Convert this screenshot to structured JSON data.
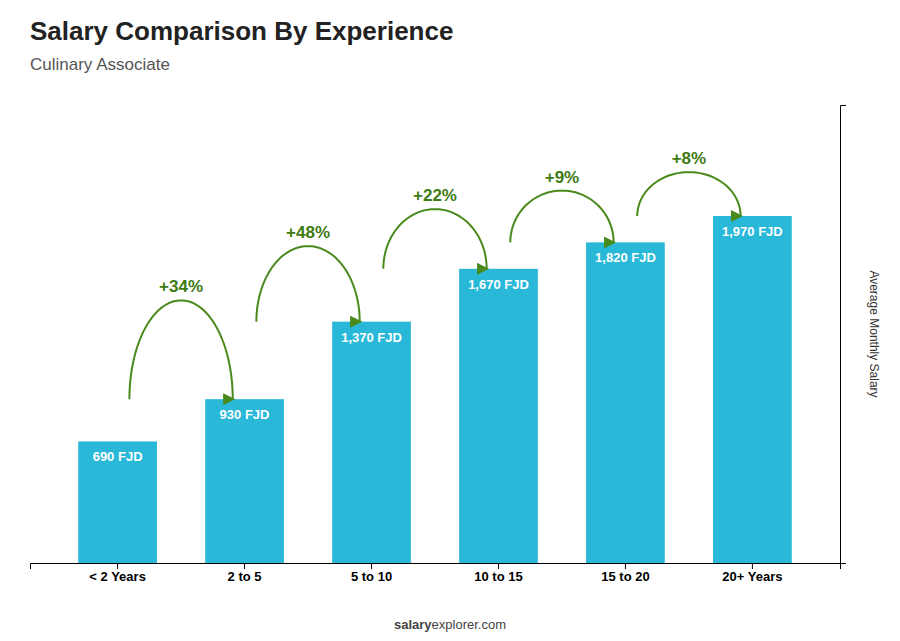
{
  "chart_data": {
    "type": "bar",
    "title": "Salary Comparison By Experience",
    "subtitle": "Culinary Associate",
    "ylabel": "Average Monthly Salary",
    "categories": [
      "< 2 Years",
      "2 to 5",
      "5 to 10",
      "10 to 15",
      "15 to 20",
      "20+ Years"
    ],
    "values": [
      690,
      930,
      1370,
      1670,
      1820,
      1970
    ],
    "value_labels": [
      "690 FJD",
      "930 FJD",
      "1,370 FJD",
      "1,670 FJD",
      "1,820 FJD",
      "1,970 FJD"
    ],
    "data_labels": true,
    "annotations": [
      "+34%",
      "+48%",
      "+22%",
      "+9%",
      "+8%"
    ],
    "footer": [
      "salary",
      "explorer.com"
    ],
    "color": "#29b8d8",
    "ylim": [
      0,
      2600
    ],
    "yticks": [],
    "tick_labels": "x",
    "grid": false
  }
}
